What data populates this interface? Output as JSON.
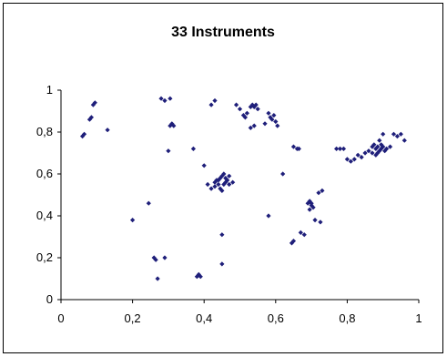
{
  "chart_data": {
    "type": "scatter",
    "title": "33  Instruments",
    "xlabel": "",
    "ylabel": "",
    "xlim": [
      0,
      1
    ],
    "ylim": [
      0,
      1
    ],
    "x_ticks": [
      "0",
      "0,2",
      "0,4",
      "0,6",
      "0,8",
      "1"
    ],
    "y_ticks": [
      "0",
      "0,2",
      "0,4",
      "0,6",
      "0,8",
      "1"
    ],
    "grid": false,
    "legend": "none",
    "marker_color": "#1F1F7A",
    "series": [
      {
        "points": [
          [
            0.06,
            0.78
          ],
          [
            0.065,
            0.79
          ],
          [
            0.08,
            0.86
          ],
          [
            0.085,
            0.87
          ],
          [
            0.09,
            0.93
          ],
          [
            0.095,
            0.94
          ],
          [
            0.13,
            0.81
          ],
          [
            0.2,
            0.38
          ],
          [
            0.245,
            0.46
          ],
          [
            0.26,
            0.2
          ],
          [
            0.265,
            0.19
          ],
          [
            0.27,
            0.1
          ],
          [
            0.29,
            0.2
          ],
          [
            0.28,
            0.96
          ],
          [
            0.29,
            0.95
          ],
          [
            0.305,
            0.96
          ],
          [
            0.3,
            0.71
          ],
          [
            0.305,
            0.83
          ],
          [
            0.31,
            0.84
          ],
          [
            0.315,
            0.83
          ],
          [
            0.37,
            0.72
          ],
          [
            0.38,
            0.11
          ],
          [
            0.385,
            0.12
          ],
          [
            0.39,
            0.11
          ],
          [
            0.42,
            0.93
          ],
          [
            0.43,
            0.95
          ],
          [
            0.45,
            0.31
          ],
          [
            0.45,
            0.17
          ],
          [
            0.4,
            0.64
          ],
          [
            0.41,
            0.55
          ],
          [
            0.42,
            0.53
          ],
          [
            0.43,
            0.56
          ],
          [
            0.44,
            0.57
          ],
          [
            0.445,
            0.58
          ],
          [
            0.45,
            0.59
          ],
          [
            0.455,
            0.6
          ],
          [
            0.46,
            0.58
          ],
          [
            0.465,
            0.57
          ],
          [
            0.47,
            0.55
          ],
          [
            0.44,
            0.55
          ],
          [
            0.43,
            0.54
          ],
          [
            0.45,
            0.52
          ],
          [
            0.46,
            0.56
          ],
          [
            0.47,
            0.59
          ],
          [
            0.48,
            0.56
          ],
          [
            0.455,
            0.55
          ],
          [
            0.445,
            0.53
          ],
          [
            0.435,
            0.57
          ],
          [
            0.49,
            0.93
          ],
          [
            0.5,
            0.91
          ],
          [
            0.51,
            0.88
          ],
          [
            0.515,
            0.87
          ],
          [
            0.52,
            0.89
          ],
          [
            0.53,
            0.92
          ],
          [
            0.535,
            0.93
          ],
          [
            0.54,
            0.92
          ],
          [
            0.545,
            0.93
          ],
          [
            0.55,
            0.91
          ],
          [
            0.53,
            0.82
          ],
          [
            0.54,
            0.83
          ],
          [
            0.58,
            0.89
          ],
          [
            0.585,
            0.87
          ],
          [
            0.59,
            0.86
          ],
          [
            0.595,
            0.88
          ],
          [
            0.6,
            0.85
          ],
          [
            0.605,
            0.83
          ],
          [
            0.57,
            0.84
          ],
          [
            0.58,
            0.4
          ],
          [
            0.62,
            0.6
          ],
          [
            0.65,
            0.73
          ],
          [
            0.66,
            0.72
          ],
          [
            0.665,
            0.72
          ],
          [
            0.645,
            0.27
          ],
          [
            0.65,
            0.28
          ],
          [
            0.67,
            0.32
          ],
          [
            0.68,
            0.31
          ],
          [
            0.69,
            0.46
          ],
          [
            0.695,
            0.47
          ],
          [
            0.7,
            0.45
          ],
          [
            0.705,
            0.44
          ],
          [
            0.695,
            0.43
          ],
          [
            0.7,
            0.46
          ],
          [
            0.72,
            0.51
          ],
          [
            0.73,
            0.52
          ],
          [
            0.71,
            0.38
          ],
          [
            0.725,
            0.37
          ],
          [
            0.77,
            0.72
          ],
          [
            0.78,
            0.72
          ],
          [
            0.79,
            0.72
          ],
          [
            0.8,
            0.67
          ],
          [
            0.81,
            0.66
          ],
          [
            0.82,
            0.67
          ],
          [
            0.83,
            0.69
          ],
          [
            0.84,
            0.68
          ],
          [
            0.85,
            0.7
          ],
          [
            0.86,
            0.71
          ],
          [
            0.87,
            0.7
          ],
          [
            0.88,
            0.69
          ],
          [
            0.87,
            0.73
          ],
          [
            0.875,
            0.74
          ],
          [
            0.88,
            0.72
          ],
          [
            0.885,
            0.7
          ],
          [
            0.89,
            0.71
          ],
          [
            0.895,
            0.72
          ],
          [
            0.9,
            0.73
          ],
          [
            0.905,
            0.71
          ],
          [
            0.91,
            0.72
          ],
          [
            0.89,
            0.76
          ],
          [
            0.9,
            0.79
          ],
          [
            0.92,
            0.73
          ],
          [
            0.93,
            0.79
          ],
          [
            0.94,
            0.78
          ],
          [
            0.95,
            0.79
          ],
          [
            0.96,
            0.76
          ],
          [
            0.885,
            0.73
          ],
          [
            0.895,
            0.74
          ]
        ]
      }
    ]
  }
}
